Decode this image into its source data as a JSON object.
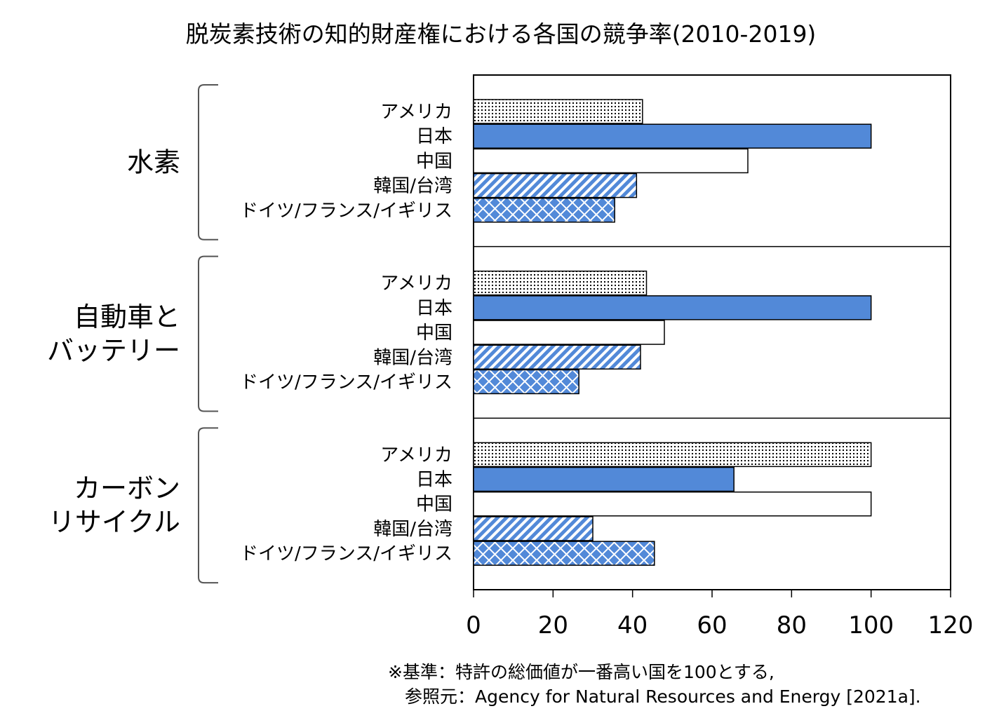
{
  "chart_data": {
    "type": "bar",
    "orientation": "horizontal",
    "title": "脱炭素技術の知的財産権における各国の競争率(2010-2019)",
    "categories": [
      "アメリカ",
      "日本",
      "中国",
      "韓国/台湾",
      "ドイツ/フランス/イギリス"
    ],
    "groups": [
      {
        "label_lines": [
          "水素"
        ],
        "values": [
          42.5,
          100,
          69,
          41,
          35.5
        ]
      },
      {
        "label_lines": [
          "自動車と",
          "バッテリー"
        ],
        "values": [
          43.5,
          100,
          48,
          42,
          26.5
        ]
      },
      {
        "label_lines": [
          "カーボン",
          "リサイクル"
        ],
        "values": [
          100,
          65.5,
          100,
          30,
          45.5
        ]
      }
    ],
    "series_styles": [
      {
        "category": "アメリカ",
        "fill": "#ffffff",
        "pattern": "dots"
      },
      {
        "category": "日本",
        "fill": "#5289d8",
        "pattern": "solid"
      },
      {
        "category": "中国",
        "fill": "#ffffff",
        "pattern": "solid"
      },
      {
        "category": "韓国/台湾",
        "fill": "#5289d8",
        "pattern": "diagonal-stripes"
      },
      {
        "category": "ドイツ/フランス/イギリス",
        "fill": "#5289d8",
        "pattern": "crosshatch"
      }
    ],
    "xlim": [
      0,
      120
    ],
    "xticks": [
      0,
      20,
      40,
      60,
      80,
      100,
      120
    ],
    "grid": false,
    "legend": "none"
  },
  "notes": {
    "line1": "※基準：特許の総価値が一番高い国を100とする,",
    "line2": "参照元：Agency for Natural Resources and Energy [2021a]."
  }
}
